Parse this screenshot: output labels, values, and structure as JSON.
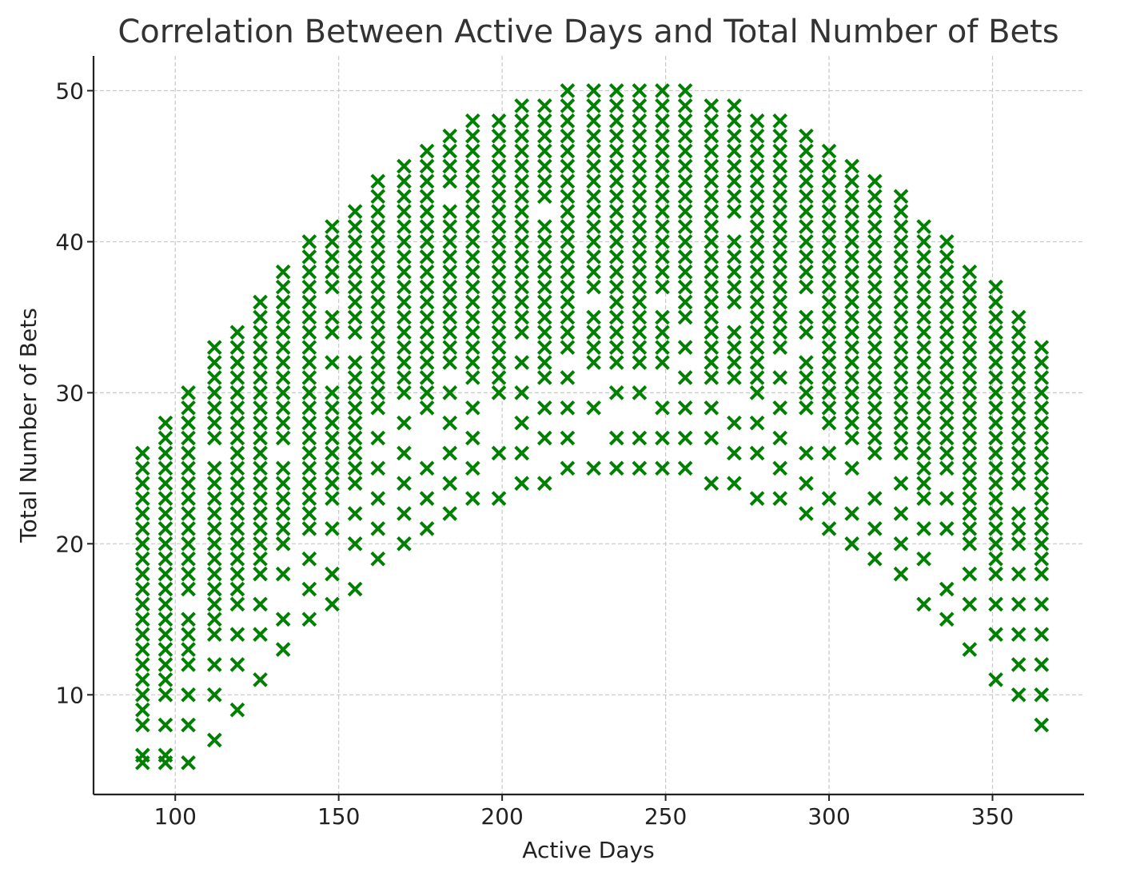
{
  "chart_data": {
    "type": "scatter",
    "title": "Correlation Between Active Days and Total Number of Bets",
    "xlabel": "Active Days",
    "ylabel": "Total Number of Bets",
    "xlim": [
      75,
      378
    ],
    "ylim": [
      3.4,
      52.3
    ],
    "xticks": [
      100,
      150,
      200,
      250,
      300,
      350
    ],
    "yticks": [
      10,
      20,
      30,
      40,
      50
    ],
    "grid": true,
    "marker": "x",
    "color": "#008000",
    "columns": [
      {
        "x": 90,
        "y": [
          5.5,
          6,
          8,
          9,
          10,
          11,
          12,
          13,
          14,
          15,
          16,
          17,
          18,
          19,
          20,
          21,
          22,
          23,
          24,
          25,
          26
        ]
      },
      {
        "x": 97,
        "y": [
          5.5,
          6,
          8,
          10,
          11,
          12,
          13,
          14,
          15,
          16,
          17,
          18,
          19,
          20,
          21,
          22,
          23,
          24,
          25,
          26,
          27,
          28
        ]
      },
      {
        "x": 104,
        "y": [
          5.5,
          8,
          10,
          12,
          13,
          14,
          15,
          17,
          18,
          19,
          20,
          21,
          22,
          23,
          24,
          25,
          26,
          27,
          28,
          29,
          30
        ]
      },
      {
        "x": 112,
        "y": [
          7,
          10,
          12,
          14,
          15,
          16,
          17,
          18,
          19,
          20,
          21,
          22,
          23,
          24,
          25,
          27,
          28,
          29,
          30,
          31,
          32,
          33
        ]
      },
      {
        "x": 119,
        "y": [
          9,
          12,
          14,
          16,
          17,
          18,
          19,
          20,
          21,
          22,
          23,
          24,
          25,
          26,
          27,
          28,
          29,
          30,
          31,
          32,
          33,
          34
        ]
      },
      {
        "x": 126,
        "y": [
          11,
          14,
          16,
          18,
          19,
          20,
          21,
          22,
          23,
          24,
          25,
          26,
          27,
          28,
          29,
          30,
          31,
          32,
          33,
          34,
          35,
          36
        ]
      },
      {
        "x": 133,
        "y": [
          13,
          15,
          18,
          20,
          21,
          22,
          23,
          24,
          25,
          27,
          28,
          29,
          30,
          31,
          32,
          33,
          34,
          35,
          36,
          37,
          38
        ]
      },
      {
        "x": 141,
        "y": [
          15,
          17,
          19,
          21,
          22,
          23,
          24,
          25,
          26,
          27,
          28,
          29,
          30,
          31,
          32,
          33,
          34,
          35,
          36,
          37,
          38,
          39,
          40
        ]
      },
      {
        "x": 148,
        "y": [
          16,
          18,
          21,
          23,
          24,
          25,
          26,
          27,
          28,
          29,
          30,
          32,
          34,
          35,
          37,
          38,
          39,
          40,
          41
        ]
      },
      {
        "x": 155,
        "y": [
          17,
          20,
          22,
          24,
          25,
          26,
          27,
          28,
          29,
          30,
          31,
          32,
          34,
          35,
          36,
          37,
          38,
          39,
          40,
          41,
          42
        ]
      },
      {
        "x": 162,
        "y": [
          19,
          21,
          23,
          25,
          27,
          29,
          30,
          31,
          32,
          33,
          34,
          35,
          36,
          37,
          38,
          39,
          40,
          41,
          42,
          43,
          44
        ]
      },
      {
        "x": 170,
        "y": [
          20,
          22,
          24,
          26,
          28,
          30,
          31,
          32,
          33,
          34,
          35,
          36,
          37,
          38,
          39,
          40,
          41,
          42,
          43,
          44,
          45
        ]
      },
      {
        "x": 177,
        "y": [
          21,
          23,
          25,
          29,
          30,
          31,
          32,
          33,
          34,
          35,
          36,
          37,
          38,
          39,
          40,
          41,
          42,
          43,
          44,
          45,
          46
        ]
      },
      {
        "x": 184,
        "y": [
          22,
          24,
          26,
          28,
          30,
          32,
          33,
          34,
          35,
          36,
          37,
          38,
          39,
          40,
          41,
          42,
          44,
          45,
          46,
          47
        ]
      },
      {
        "x": 191,
        "y": [
          23,
          25,
          27,
          29,
          31,
          32,
          33,
          34,
          35,
          36,
          37,
          38,
          39,
          40,
          41,
          42,
          43,
          44,
          45,
          46,
          47,
          48
        ]
      },
      {
        "x": 199,
        "y": [
          23,
          26,
          30,
          31,
          32,
          33,
          34,
          35,
          36,
          37,
          38,
          39,
          40,
          41,
          42,
          43,
          44,
          45,
          46,
          47,
          48
        ]
      },
      {
        "x": 206,
        "y": [
          24,
          26,
          28,
          30,
          32,
          34,
          35,
          36,
          37,
          38,
          39,
          40,
          41,
          42,
          43,
          44,
          45,
          46,
          47,
          48,
          49
        ]
      },
      {
        "x": 213,
        "y": [
          24,
          27,
          29,
          31,
          32,
          33,
          34,
          35,
          36,
          37,
          38,
          39,
          40,
          41,
          43,
          44,
          45,
          46,
          47,
          48,
          49
        ]
      },
      {
        "x": 220,
        "y": [
          25,
          27,
          29,
          31,
          33,
          34,
          35,
          36,
          37,
          38,
          39,
          40,
          41,
          42,
          43,
          44,
          45,
          46,
          47,
          48,
          49,
          50
        ]
      },
      {
        "x": 228,
        "y": [
          25,
          29,
          32,
          33,
          34,
          35,
          37,
          38,
          39,
          40,
          41,
          42,
          43,
          44,
          45,
          46,
          47,
          48,
          49,
          50
        ]
      },
      {
        "x": 235,
        "y": [
          25,
          27,
          30,
          32,
          33,
          34,
          35,
          36,
          37,
          38,
          39,
          40,
          41,
          42,
          43,
          44,
          45,
          46,
          47,
          48,
          49,
          50
        ]
      },
      {
        "x": 242,
        "y": [
          25,
          27,
          30,
          32,
          33,
          34,
          35,
          36,
          37,
          38,
          39,
          40,
          41,
          42,
          43,
          44,
          45,
          46,
          47,
          48,
          49,
          50
        ]
      },
      {
        "x": 249,
        "y": [
          25,
          27,
          29,
          32,
          33,
          34,
          35,
          37,
          38,
          39,
          40,
          41,
          42,
          43,
          44,
          45,
          46,
          47,
          48,
          49,
          50
        ]
      },
      {
        "x": 256,
        "y": [
          25,
          27,
          29,
          31,
          33,
          35,
          36,
          37,
          38,
          39,
          40,
          41,
          42,
          43,
          44,
          45,
          46,
          47,
          48,
          49,
          50
        ]
      },
      {
        "x": 264,
        "y": [
          24,
          27,
          29,
          31,
          32,
          33,
          34,
          35,
          36,
          37,
          38,
          39,
          40,
          41,
          42,
          43,
          44,
          45,
          46,
          47,
          48,
          49
        ]
      },
      {
        "x": 271,
        "y": [
          24,
          26,
          28,
          31,
          32,
          33,
          34,
          36,
          37,
          38,
          39,
          40,
          42,
          43,
          44,
          45,
          46,
          47,
          48,
          49
        ]
      },
      {
        "x": 278,
        "y": [
          23,
          26,
          28,
          30,
          31,
          32,
          33,
          34,
          35,
          36,
          37,
          38,
          39,
          40,
          41,
          42,
          43,
          44,
          45,
          46,
          47,
          48
        ]
      },
      {
        "x": 285,
        "y": [
          23,
          25,
          27,
          29,
          31,
          33,
          34,
          35,
          36,
          37,
          38,
          39,
          40,
          41,
          42,
          43,
          44,
          45,
          46,
          47,
          48
        ]
      },
      {
        "x": 293,
        "y": [
          22,
          24,
          26,
          29,
          30,
          31,
          32,
          34,
          35,
          37,
          38,
          39,
          40,
          41,
          42,
          43,
          44,
          45,
          46,
          47
        ]
      },
      {
        "x": 300,
        "y": [
          21,
          23,
          26,
          28,
          29,
          30,
          31,
          32,
          33,
          34,
          35,
          36,
          37,
          38,
          39,
          40,
          41,
          42,
          43,
          44,
          45,
          46
        ]
      },
      {
        "x": 307,
        "y": [
          20,
          22,
          25,
          27,
          28,
          29,
          30,
          31,
          32,
          33,
          34,
          35,
          36,
          37,
          38,
          39,
          40,
          41,
          42,
          43,
          44,
          45
        ]
      },
      {
        "x": 314,
        "y": [
          19,
          21,
          23,
          26,
          27,
          28,
          29,
          30,
          31,
          32,
          33,
          34,
          35,
          36,
          37,
          38,
          39,
          40,
          41,
          42,
          43,
          44
        ]
      },
      {
        "x": 322,
        "y": [
          18,
          20,
          22,
          24,
          26,
          27,
          28,
          29,
          30,
          31,
          32,
          33,
          34,
          35,
          36,
          37,
          38,
          39,
          40,
          41,
          42,
          43
        ]
      },
      {
        "x": 329,
        "y": [
          16,
          19,
          21,
          23,
          24,
          25,
          26,
          27,
          28,
          29,
          30,
          31,
          32,
          33,
          34,
          35,
          36,
          37,
          38,
          39,
          40,
          41
        ]
      },
      {
        "x": 336,
        "y": [
          15,
          17,
          21,
          23,
          25,
          26,
          27,
          28,
          29,
          30,
          31,
          32,
          33,
          34,
          35,
          36,
          37,
          38,
          39,
          40
        ]
      },
      {
        "x": 343,
        "y": [
          13,
          16,
          18,
          20,
          21,
          22,
          23,
          24,
          25,
          26,
          27,
          28,
          29,
          30,
          31,
          32,
          33,
          34,
          35,
          36,
          37,
          38
        ]
      },
      {
        "x": 351,
        "y": [
          11,
          14,
          16,
          18,
          19,
          20,
          21,
          22,
          23,
          24,
          25,
          26,
          27,
          28,
          29,
          30,
          31,
          32,
          33,
          34,
          35,
          36,
          37
        ]
      },
      {
        "x": 358,
        "y": [
          10,
          12,
          14,
          16,
          18,
          20,
          21,
          22,
          24,
          25,
          26,
          27,
          28,
          29,
          30,
          31,
          32,
          33,
          34,
          35
        ]
      },
      {
        "x": 365,
        "y": [
          8,
          10,
          12,
          14,
          16,
          18,
          19,
          20,
          21,
          22,
          23,
          24,
          25,
          26,
          27,
          28,
          29,
          30,
          31,
          32,
          33
        ]
      }
    ]
  }
}
